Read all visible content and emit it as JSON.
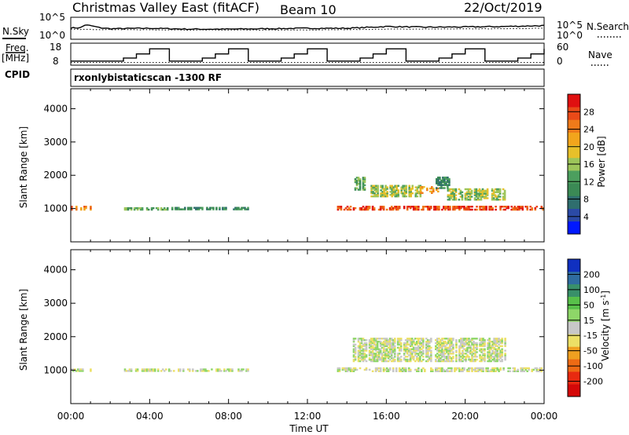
{
  "header": {
    "title": "Christmas Valley East (fitACF)",
    "beam": "Beam 10",
    "date": "22/Oct/2019"
  },
  "labels": {
    "nsky": "N.Sky",
    "freq": "Freq.",
    "mhz": "[MHz]",
    "cpid": "CPID",
    "nsearch": "N.Search",
    "nave": "Nave",
    "cpid_name": "rxonlybistaticscan -1300 RF"
  },
  "chart_data": [
    {
      "type": "line",
      "panel": "noise",
      "ylim_labels": [
        "10^0",
        "10^5"
      ],
      "series": [
        {
          "name": "N.Sky",
          "style": "solid",
          "x": [
            0,
            0.5,
            0.7,
            1.0,
            1.5,
            2,
            4,
            6,
            8,
            10,
            12,
            14,
            16,
            18,
            20,
            22,
            23,
            24
          ],
          "y": [
            0.52,
            0.52,
            0.65,
            0.62,
            0.52,
            0.48,
            0.5,
            0.46,
            0.46,
            0.48,
            0.5,
            0.5,
            0.58,
            0.55,
            0.56,
            0.58,
            0.6,
            0.62
          ]
        },
        {
          "name": "N.Search",
          "style": "dotted",
          "x": [
            0,
            4,
            8,
            12,
            16,
            20,
            24
          ],
          "y": [
            0.45,
            0.43,
            0.42,
            0.42,
            0.46,
            0.47,
            0.5
          ]
        }
      ]
    },
    {
      "type": "line",
      "panel": "frequency",
      "left_ticks": [
        "8",
        "18"
      ],
      "right_ticks": [
        "0",
        "60"
      ],
      "series": [
        {
          "name": "Freq.",
          "style": "step",
          "x": [
            0,
            2,
            2.67,
            3.33,
            4,
            5,
            6.67,
            7.33,
            8,
            9,
            10.67,
            11.33,
            12,
            13,
            14.67,
            15.33,
            16,
            17,
            18.67,
            19.33,
            20,
            21,
            22.67,
            23.33,
            24
          ],
          "y": [
            10,
            10,
            11.5,
            13.5,
            16,
            10,
            11.5,
            13.5,
            16,
            10,
            11.5,
            13.5,
            16,
            10,
            11.5,
            13.5,
            16,
            10,
            11.5,
            13.5,
            16,
            10,
            11.5,
            13.5,
            16
          ]
        },
        {
          "name": "Nave",
          "style": "dotted",
          "x": [
            0,
            24
          ],
          "y": [
            0.12,
            0.12
          ]
        }
      ]
    },
    {
      "type": "heatmap",
      "panel": "power",
      "xlabel": "",
      "ylabel": "Slant Range [km]",
      "yticks": [
        1000,
        2000,
        3000,
        4000
      ],
      "ylim": [
        0,
        4600
      ],
      "xlim": [
        0,
        24
      ],
      "colorbar": {
        "label": "Power [dB]",
        "ticks": [
          "4",
          "8",
          "12",
          "16",
          "20",
          "24",
          "28"
        ],
        "colors": [
          "#0018ff",
          "#2b4aa6",
          "#2f6e6e",
          "#3b8a55",
          "#4c9f5e",
          "#9dc55a",
          "#e7c02a",
          "#f2a51c",
          "#ef7a1a",
          "#ea4a18",
          "#e01010"
        ]
      },
      "regions": [
        {
          "t": [
            0.0,
            1.0
          ],
          "r": [
            950,
            1050
          ],
          "level": 8
        },
        {
          "t": [
            2.7,
            5.0
          ],
          "r": [
            950,
            1030
          ],
          "level": 4
        },
        {
          "t": [
            5.1,
            9.0
          ],
          "r": [
            960,
            1020
          ],
          "level": 3
        },
        {
          "t": [
            13.5,
            23.9
          ],
          "r": [
            950,
            1060
          ],
          "level": 9
        },
        {
          "t": [
            14.3,
            15.0
          ],
          "r": [
            1550,
            1950
          ],
          "level": 4
        },
        {
          "t": [
            15.2,
            17.7
          ],
          "r": [
            1350,
            1700
          ],
          "level": 5
        },
        {
          "t": [
            17.7,
            18.7
          ],
          "r": [
            1450,
            1650
          ],
          "level": 7
        },
        {
          "t": [
            19.0,
            22.0
          ],
          "r": [
            1250,
            1600
          ],
          "level": 5
        },
        {
          "t": [
            18.5,
            19.2
          ],
          "r": [
            1600,
            1950
          ],
          "level": 3
        }
      ]
    },
    {
      "type": "heatmap",
      "panel": "velocity",
      "xlabel": "Time UT",
      "ylabel": "Slant Range [km]",
      "xticks": [
        "00:00",
        "04:00",
        "08:00",
        "12:00",
        "16:00",
        "20:00",
        "00:00"
      ],
      "yticks": [
        1000,
        2000,
        3000,
        4000
      ],
      "ylim": [
        0,
        4600
      ],
      "xlim": [
        0,
        24
      ],
      "colorbar": {
        "label": "Velocity [m s^-1]",
        "ticks": [
          "200",
          "100",
          "50",
          "15",
          "-15",
          "-50",
          "-100",
          "-200"
        ],
        "colors": [
          "#1030c0",
          "#2f6ca0",
          "#39906a",
          "#58c04a",
          "#8ed668",
          "#c8c8c8",
          "#ece066",
          "#f0a020",
          "#ee6a14",
          "#e82a10",
          "#d40808"
        ]
      },
      "regions": [
        {
          "t": [
            0.0,
            1.0
          ],
          "r": [
            960,
            1050
          ],
          "level": 5
        },
        {
          "t": [
            2.7,
            9.0
          ],
          "r": [
            960,
            1030
          ],
          "level": 5
        },
        {
          "t": [
            13.5,
            23.9
          ],
          "r": [
            950,
            1060
          ],
          "level": 5
        },
        {
          "t": [
            14.3,
            22.0
          ],
          "r": [
            1250,
            1950
          ],
          "level": 5
        }
      ]
    }
  ]
}
